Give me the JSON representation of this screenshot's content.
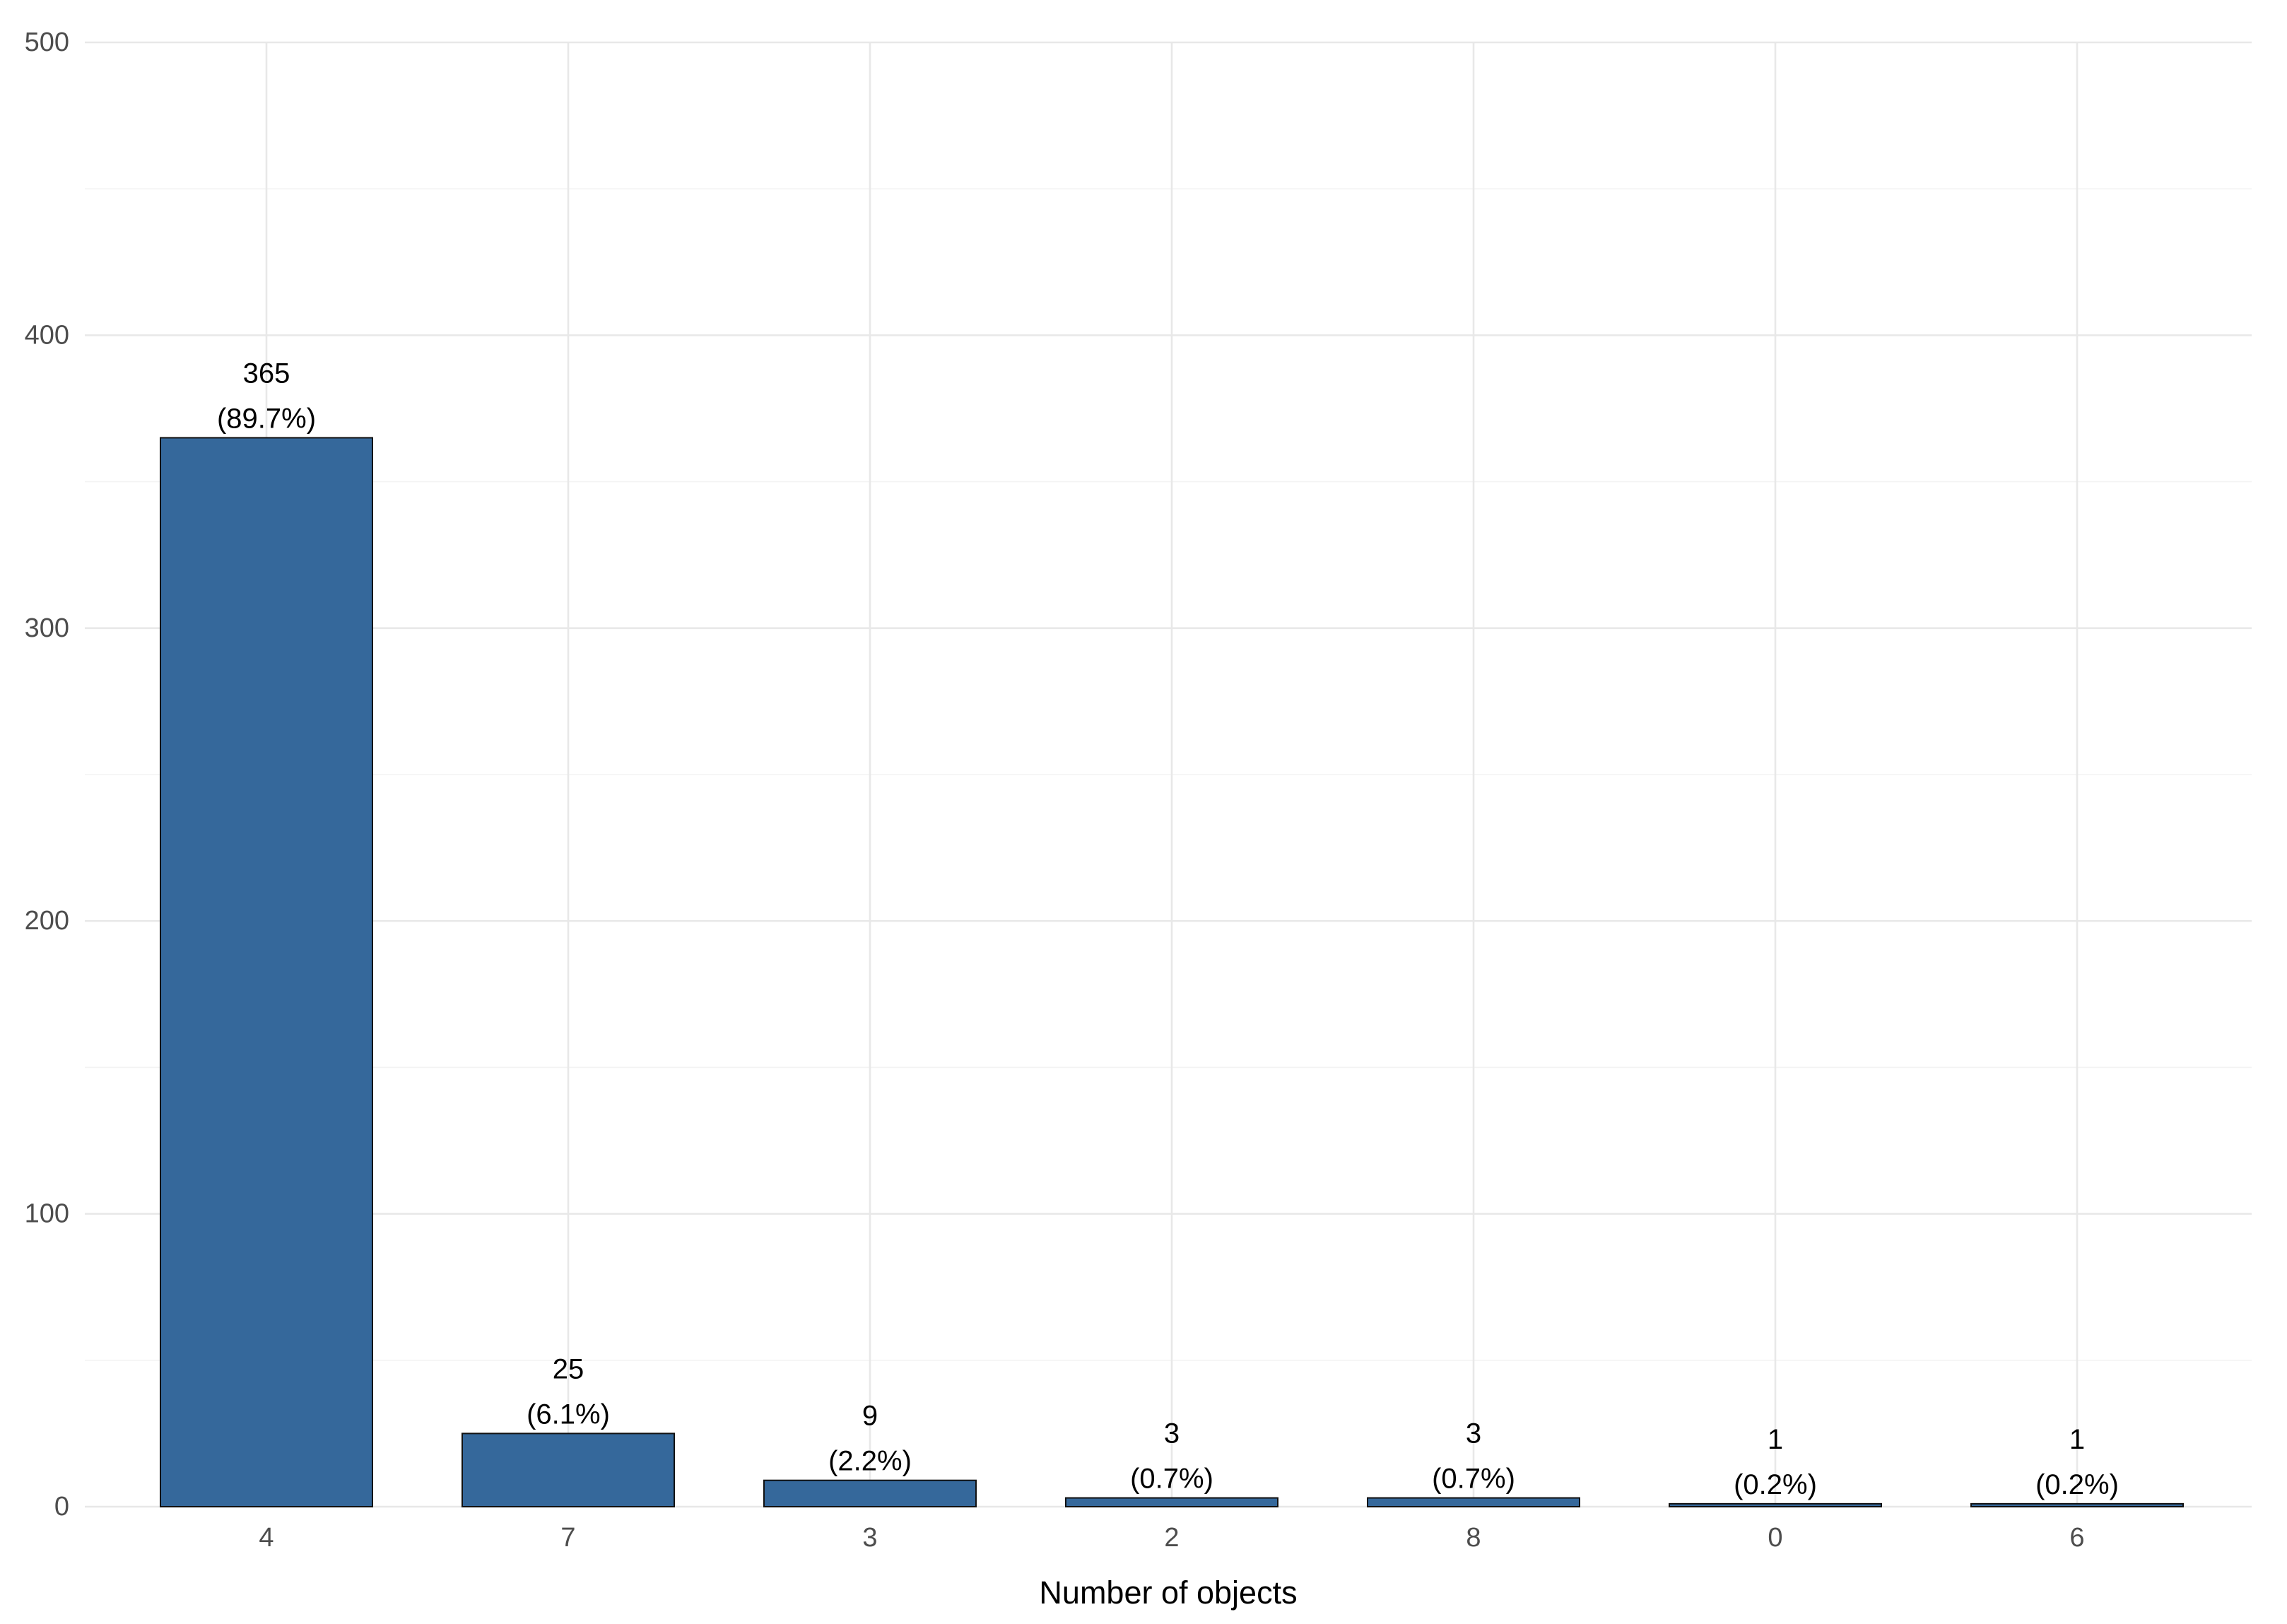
{
  "chart_data": {
    "type": "bar",
    "title": "",
    "xlabel": "Number of objects",
    "ylabel": "",
    "ylim": [
      0,
      500
    ],
    "yticks": [
      0,
      100,
      200,
      300,
      400,
      500
    ],
    "yticks_minor": [
      50,
      150,
      250,
      350,
      450
    ],
    "grid": "on",
    "legend_position": "none",
    "categories": [
      "4",
      "7",
      "3",
      "2",
      "8",
      "0",
      "6"
    ],
    "values": [
      365,
      25,
      9,
      3,
      3,
      1,
      1
    ],
    "bar_labels": [
      {
        "count": "365",
        "pct": "(89.7%)"
      },
      {
        "count": "25",
        "pct": "(6.1%)"
      },
      {
        "count": "9",
        "pct": "(2.2%)"
      },
      {
        "count": "3",
        "pct": "(0.7%)"
      },
      {
        "count": "3",
        "pct": "(0.7%)"
      },
      {
        "count": "1",
        "pct": "(0.2%)"
      },
      {
        "count": "1",
        "pct": "(0.2%)"
      }
    ]
  },
  "style": {
    "background": "#ffffff",
    "bar_fill": "#35689b",
    "bar_stroke": "#111111",
    "grid_major_color": "#e8e8e8",
    "grid_minor_color": "#f3f3f3",
    "tick_label_color": "#4d4d4d",
    "data_label_color": "#000000",
    "axis_title_color": "#000000"
  }
}
